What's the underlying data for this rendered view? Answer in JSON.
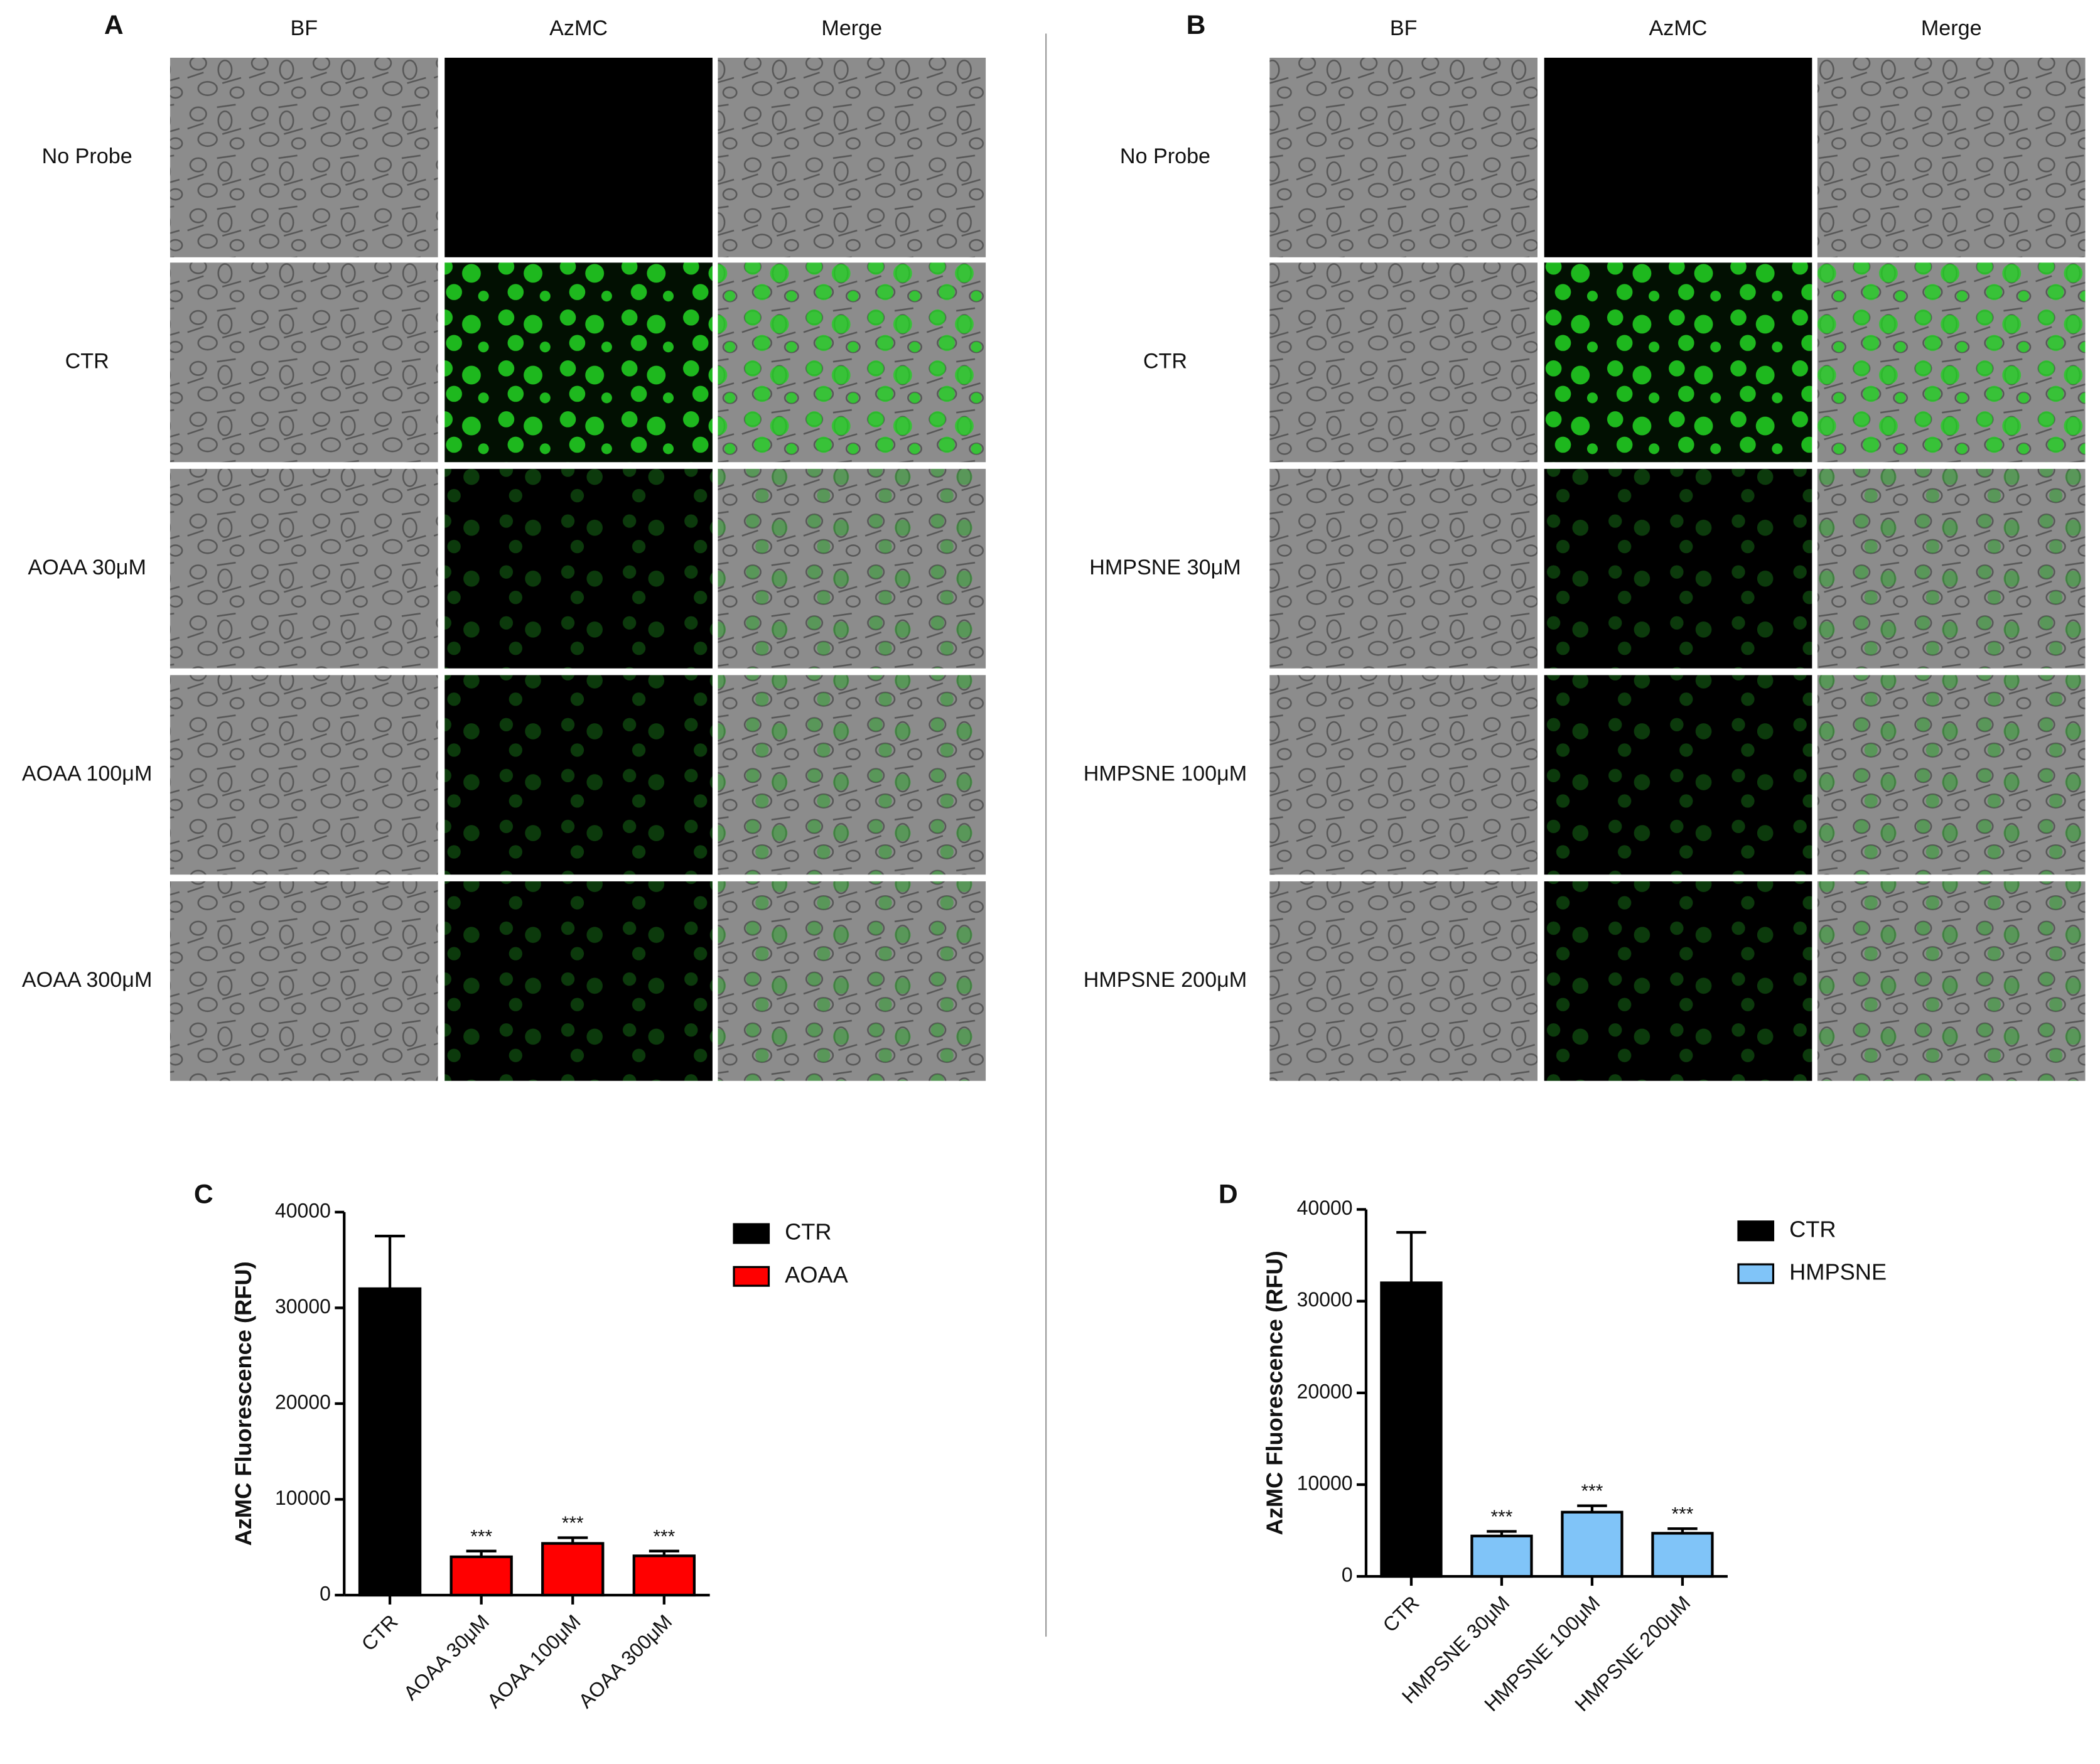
{
  "panels": [
    {
      "label": "A",
      "columns": [
        "BF",
        "AzMC",
        "Merge"
      ],
      "rows": [
        "No Probe",
        "CTR",
        "AOAA 30μM",
        "AOAA 100μM",
        "AOAA 300μM"
      ]
    },
    {
      "label": "B",
      "columns": [
        "BF",
        "AzMC",
        "Merge"
      ],
      "rows": [
        "No Probe",
        "CTR",
        "HMPSNE 30μM",
        "HMPSNE 100μM",
        "HMPSNE 200μM"
      ]
    }
  ],
  "chart_data": [
    {
      "type": "bar",
      "panel_label": "C",
      "y_label": "AzMC Fluorescence (RFU)",
      "categories": [
        "CTR",
        "AOAA 30μM",
        "AOAA 100μM",
        "AOAA 300μM"
      ],
      "series": [
        {
          "name": "CTR",
          "color": "#000000",
          "values": [
            32000,
            null,
            null,
            null
          ],
          "errors": [
            5500,
            null,
            null,
            null
          ]
        },
        {
          "name": "AOAA",
          "color": "#ff0000",
          "values": [
            null,
            4000,
            5400,
            4100
          ],
          "errors": [
            null,
            600,
            600,
            500
          ]
        }
      ],
      "significance": [
        null,
        "***",
        "***",
        "***"
      ],
      "ylim": [
        0,
        40000
      ],
      "yticks": [
        0,
        10000,
        20000,
        30000,
        40000
      ],
      "legend": "upper right"
    },
    {
      "type": "bar",
      "panel_label": "D",
      "y_label": "AzMC Fluorescence (RFU)",
      "categories": [
        "CTR",
        "HMPSNE 30μM",
        "HMPSNE 100μM",
        "HMPSNE 200μM"
      ],
      "series": [
        {
          "name": "CTR",
          "color": "#000000",
          "values": [
            32000,
            null,
            null,
            null
          ],
          "errors": [
            5500,
            null,
            null,
            null
          ]
        },
        {
          "name": "HMPSNE",
          "color": "#80c4f8",
          "values": [
            null,
            4400,
            7000,
            4700
          ],
          "errors": [
            null,
            500,
            700,
            500
          ]
        }
      ],
      "significance": [
        null,
        "***",
        "***",
        "***"
      ],
      "ylim": [
        0,
        40000
      ],
      "yticks": [
        0,
        10000,
        20000,
        30000,
        40000
      ],
      "legend": "upper right"
    }
  ]
}
